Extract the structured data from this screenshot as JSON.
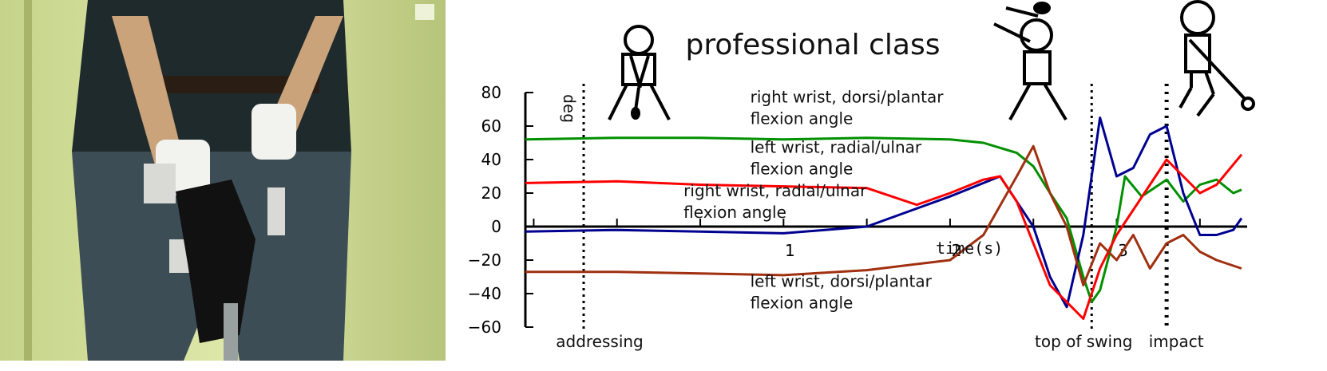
{
  "figure": {
    "title": "professional class",
    "photo_description_icon": "golfer-with-wrist-sensors-photo"
  },
  "chart_data": {
    "type": "line",
    "title": "professional class",
    "xlabel": "time(s)",
    "ylabel": "deg",
    "xlim": [
      -0.55,
      3.75
    ],
    "ylim": [
      -60,
      80
    ],
    "y_ticks": [
      80,
      60,
      40,
      20,
      0,
      -20,
      -40,
      -60
    ],
    "y_tick_labels": [
      "80",
      "60",
      "40",
      "20",
      "0",
      "−20",
      "−40",
      "−60"
    ],
    "x_ticks": [
      1,
      2,
      3
    ],
    "x_tick_labels": [
      "1",
      "2",
      "3"
    ],
    "grid": false,
    "events": [
      {
        "label": "addressing",
        "x": -0.2
      },
      {
        "label": "top of swing",
        "x": 2.85
      },
      {
        "label": "impact",
        "x": 3.3
      }
    ],
    "series_labels": [
      {
        "lines": [
          "right wrist, dorsi/plantar",
          " flexion angle"
        ],
        "x": 0.8,
        "y": 74
      },
      {
        "lines": [
          "left wrist, radial/ulnar",
          "flexion angle"
        ],
        "x": 0.8,
        "y": 44
      },
      {
        "lines": [
          "right wrist, radial/ulnar",
          "flexion angle"
        ],
        "x": 0.4,
        "y": 18
      },
      {
        "lines": [
          "left wrist, dorsi/plantar",
          "flexion angle"
        ],
        "x": 0.8,
        "y": -36
      }
    ],
    "series": [
      {
        "color": "#009000",
        "x": [
          -0.55,
          0,
          0.5,
          1,
          1.5,
          2,
          2.2,
          2.4,
          2.5,
          2.6,
          2.7,
          2.8,
          2.85,
          2.9,
          3.0,
          3.05,
          3.15,
          3.3,
          3.4,
          3.5,
          3.6,
          3.7,
          3.75
        ],
        "values": [
          52,
          53,
          53,
          52,
          53,
          52,
          50,
          44,
          36,
          20,
          5,
          -30,
          -45,
          -38,
          0,
          30,
          18,
          28,
          15,
          25,
          28,
          20,
          22
        ]
      },
      {
        "color": "#000090",
        "x": [
          -0.55,
          0,
          0.5,
          1,
          1.5,
          2,
          2.3,
          2.5,
          2.6,
          2.7,
          2.8,
          2.9,
          3.0,
          3.1,
          3.2,
          3.3,
          3.4,
          3.5,
          3.6,
          3.7,
          3.75
        ],
        "values": [
          -3,
          -2,
          -3,
          -4,
          0,
          18,
          30,
          0,
          -30,
          -48,
          -5,
          65,
          30,
          35,
          55,
          60,
          20,
          -5,
          -5,
          -2,
          5
        ]
      },
      {
        "color": "#ff0000",
        "x": [
          -0.55,
          0,
          0.5,
          1,
          1.5,
          1.8,
          2,
          2.2,
          2.3,
          2.4,
          2.5,
          2.6,
          2.7,
          2.8,
          2.9,
          3.0,
          3.1,
          3.2,
          3.3,
          3.4,
          3.5,
          3.6,
          3.75
        ],
        "values": [
          26,
          27,
          25,
          24,
          23,
          13,
          20,
          28,
          30,
          15,
          -10,
          -35,
          -45,
          -55,
          -25,
          -5,
          10,
          25,
          40,
          30,
          20,
          25,
          43
        ]
      },
      {
        "color": "#a03010",
        "x": [
          -0.55,
          0,
          0.5,
          1,
          1.5,
          2,
          2.2,
          2.4,
          2.5,
          2.6,
          2.7,
          2.8,
          2.9,
          3.0,
          3.1,
          3.2,
          3.3,
          3.4,
          3.5,
          3.6,
          3.75
        ],
        "values": [
          -27,
          -27,
          -28,
          -29,
          -26,
          -20,
          -5,
          30,
          48,
          20,
          0,
          -35,
          -10,
          -20,
          -5,
          -25,
          -10,
          -5,
          -15,
          -20,
          -25
        ]
      }
    ]
  }
}
